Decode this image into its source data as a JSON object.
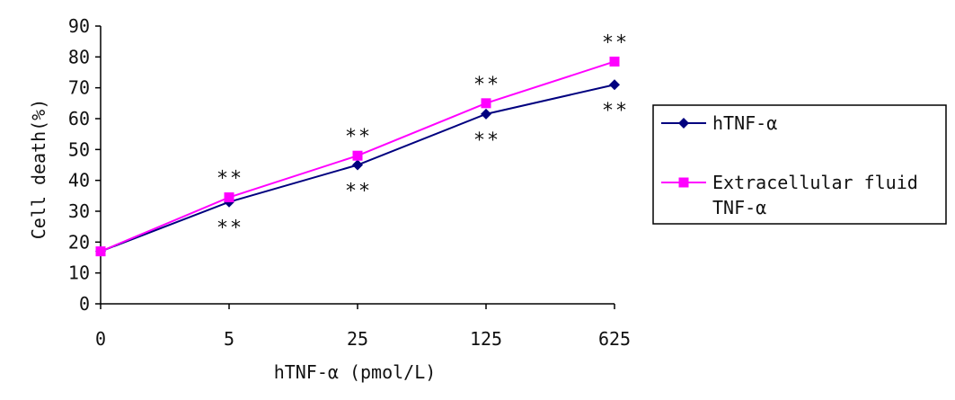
{
  "chart_data": {
    "type": "line",
    "title": "",
    "xlabel": "hTNF-α (pmol/L)",
    "ylabel": "Cell death(%)",
    "categories": [
      "0",
      "5",
      "25",
      "125",
      "625"
    ],
    "ylim": [
      0,
      90
    ],
    "yticks": [
      0,
      10,
      20,
      30,
      40,
      50,
      60,
      70,
      80,
      90
    ],
    "grid": false,
    "legend_position": "right",
    "series": [
      {
        "name": "hTNF-α",
        "values": [
          17,
          33,
          45,
          61.5,
          71
        ],
        "color": "#00007f",
        "marker": "diamond"
      },
      {
        "name": "Extracellular fluid TNF-α",
        "values": [
          17,
          34.5,
          48,
          65,
          78.5
        ],
        "color": "#ff00ff",
        "marker": "square"
      }
    ],
    "annotations": [
      {
        "x": "5",
        "series": "Extracellular fluid TNF-α",
        "text": "**",
        "position": "above"
      },
      {
        "x": "5",
        "series": "hTNF-α",
        "text": "**",
        "position": "below"
      },
      {
        "x": "25",
        "series": "Extracellular fluid TNF-α",
        "text": "**",
        "position": "above"
      },
      {
        "x": "25",
        "series": "hTNF-α",
        "text": "**",
        "position": "below"
      },
      {
        "x": "125",
        "series": "Extracellular fluid TNF-α",
        "text": "**",
        "position": "above"
      },
      {
        "x": "125",
        "series": "hTNF-α",
        "text": "**",
        "position": "below"
      },
      {
        "x": "625",
        "series": "Extracellular fluid TNF-α",
        "text": "**",
        "position": "above"
      },
      {
        "x": "625",
        "series": "hTNF-α",
        "text": "**",
        "position": "below"
      }
    ],
    "legend": {
      "entries": [
        {
          "lines": [
            "hTNF-α"
          ]
        },
        {
          "lines": [
            "Extracellular fluid",
            "TNF-α"
          ]
        }
      ]
    }
  }
}
